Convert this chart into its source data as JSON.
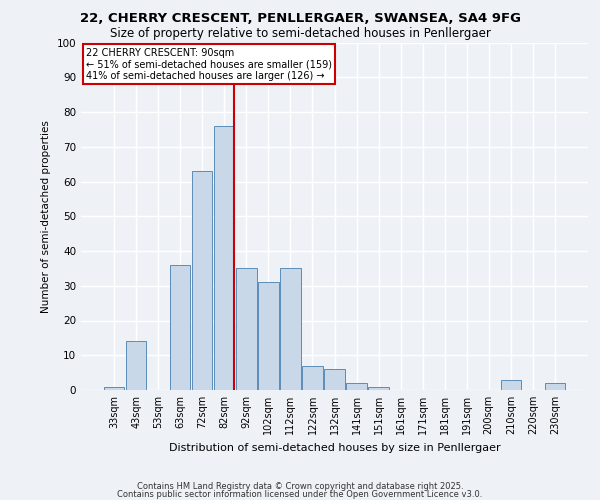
{
  "title_line1": "22, CHERRY CRESCENT, PENLLERGAER, SWANSEA, SA4 9FG",
  "title_line2": "Size of property relative to semi-detached houses in Penllergaer",
  "xlabel": "Distribution of semi-detached houses by size in Penllergaer",
  "ylabel": "Number of semi-detached properties",
  "footer_line1": "Contains HM Land Registry data © Crown copyright and database right 2025.",
  "footer_line2": "Contains public sector information licensed under the Open Government Licence v3.0.",
  "categories": [
    "33sqm",
    "43sqm",
    "53sqm",
    "63sqm",
    "72sqm",
    "82sqm",
    "92sqm",
    "102sqm",
    "112sqm",
    "122sqm",
    "132sqm",
    "141sqm",
    "151sqm",
    "161sqm",
    "171sqm",
    "181sqm",
    "191sqm",
    "200sqm",
    "210sqm",
    "220sqm",
    "230sqm"
  ],
  "values": [
    1,
    14,
    0,
    36,
    63,
    76,
    35,
    31,
    35,
    7,
    6,
    2,
    1,
    0,
    0,
    0,
    0,
    0,
    3,
    0,
    2
  ],
  "bar_color": "#c8d8e8",
  "bar_edge_color": "#5b8db8",
  "vline_color": "#cc0000",
  "annotation_box_color": "#cc0000",
  "property_label": "22 CHERRY CRESCENT: 90sqm",
  "pct_smaller": 51,
  "count_smaller": 159,
  "pct_larger": 41,
  "count_larger": 126,
  "bg_color": "#eef2f7",
  "plot_bg_color": "#eef2f7",
  "grid_color": "#ffffff",
  "ylim": [
    0,
    100
  ],
  "yticks": [
    0,
    10,
    20,
    30,
    40,
    50,
    60,
    70,
    80,
    90,
    100
  ]
}
